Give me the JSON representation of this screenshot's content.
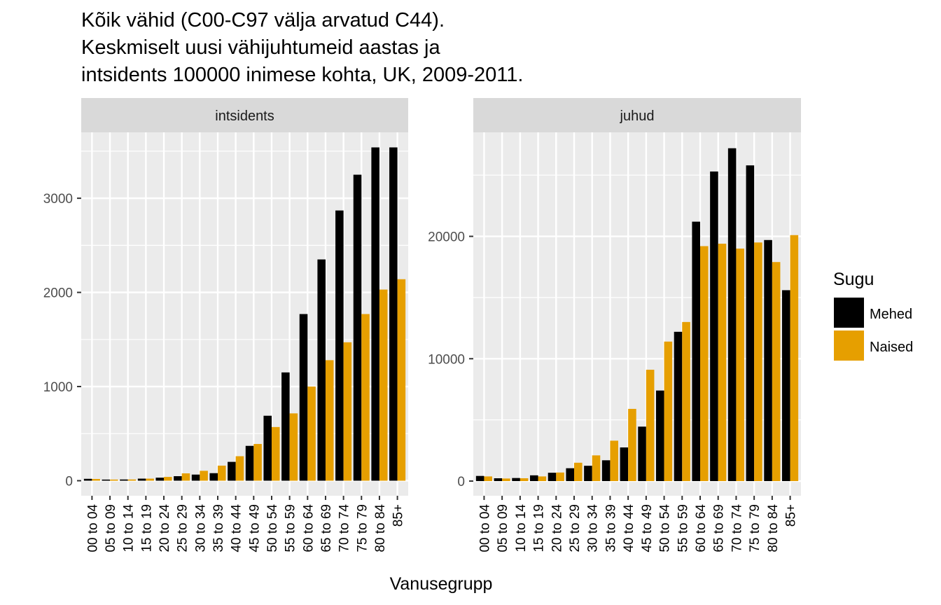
{
  "title_lines": [
    "Kõik vähid (C00-C97 välja arvatud C44).",
    "Keskmiselt uusi vähijuhtumeid aastas ja",
    "intsidents 100000 inimese kohta, UK, 2009-2011."
  ],
  "xlabel": "Vanusegrupp",
  "legend": {
    "title": "Sugu",
    "items": [
      {
        "label": "Mehed",
        "color": "#000000"
      },
      {
        "label": "Naised",
        "color": "#E69F00"
      }
    ]
  },
  "chart_data": [
    {
      "type": "bar",
      "panel": "intsidents",
      "categories": [
        "00 to 04",
        "05 to 09",
        "10 to 14",
        "15 to 19",
        "20 to 24",
        "25 to 29",
        "30 to 34",
        "35 to 39",
        "40 to 44",
        "45 to 49",
        "50 to 54",
        "55 to 59",
        "60 to 64",
        "65 to 69",
        "70 to 74",
        "75 to 79",
        "80 to 84",
        "85+"
      ],
      "series": [
        {
          "name": "Mehed",
          "values": [
            20,
            12,
            13,
            22,
            32,
            48,
            65,
            80,
            200,
            370,
            690,
            1150,
            1770,
            2350,
            2870,
            3250,
            3540,
            3540
          ]
        },
        {
          "name": "Naised",
          "values": [
            18,
            12,
            13,
            22,
            40,
            78,
            105,
            160,
            260,
            390,
            570,
            715,
            1000,
            1280,
            1470,
            1770,
            2030,
            2140
          ]
        }
      ],
      "ylim": [
        -160,
        3700
      ],
      "yticks": [
        0,
        1000,
        2000,
        3000
      ],
      "ytick_labels": [
        "0",
        "1000",
        "2000",
        "3000"
      ],
      "grid": true
    },
    {
      "type": "bar",
      "panel": "juhud",
      "categories": [
        "00 to 04",
        "05 to 09",
        "10 to 14",
        "15 to 19",
        "20 to 24",
        "25 to 29",
        "30 to 34",
        "35 to 39",
        "40 to 44",
        "45 to 49",
        "50 to 54",
        "55 to 59",
        "60 to 64",
        "65 to 69",
        "70 to 74",
        "75 to 79",
        "80 to 84",
        "85+"
      ],
      "series": [
        {
          "name": "Mehed",
          "values": [
            420,
            230,
            250,
            470,
            680,
            1050,
            1250,
            1700,
            2750,
            4450,
            7400,
            12200,
            21200,
            25300,
            27200,
            25800,
            19700,
            15600
          ]
        },
        {
          "name": "Naised",
          "values": [
            380,
            210,
            230,
            380,
            700,
            1500,
            2100,
            3300,
            5900,
            9100,
            11400,
            13000,
            19200,
            19400,
            19000,
            19500,
            17900,
            20100
          ]
        }
      ],
      "ylim": [
        -1200,
        28500
      ],
      "yticks": [
        0,
        10000,
        20000
      ],
      "ytick_labels": [
        "0",
        "10000",
        "20000"
      ],
      "grid": true
    }
  ]
}
